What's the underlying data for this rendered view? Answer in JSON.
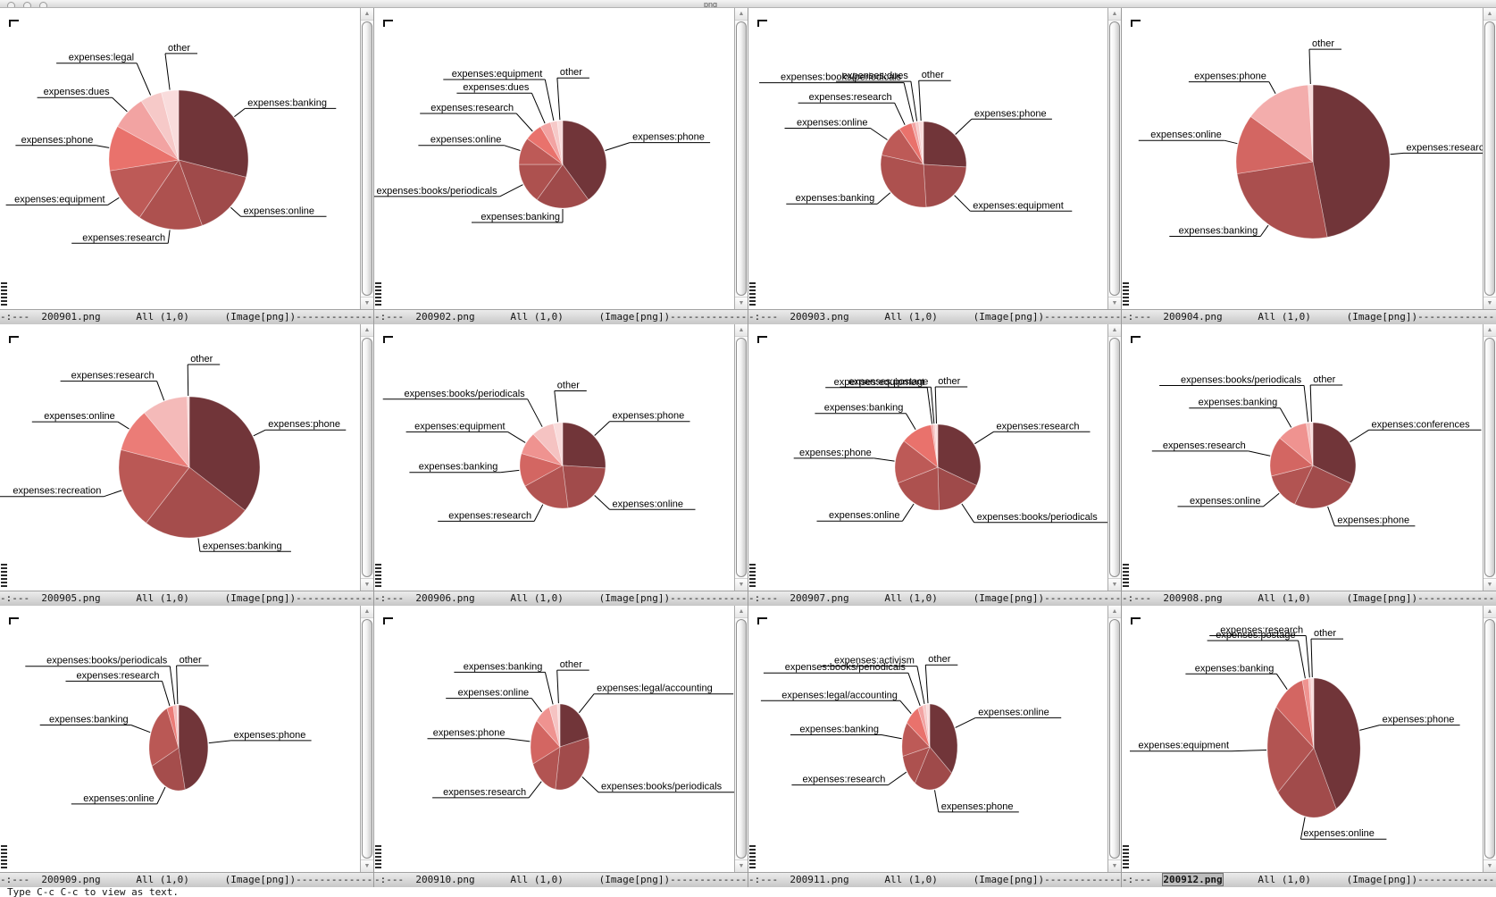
{
  "titlebar": {
    "title_fragment": "png",
    "buttons": [
      "close",
      "minimize",
      "zoom"
    ]
  },
  "modeline": {
    "prefix": "-:---  ",
    "position": "All (1,0)",
    "mode": "(Image[png])",
    "dashes": "--------------------------------------------------------"
  },
  "echo_area": "Type C-c C-c to view as text.",
  "colors": {
    "pie_ramp": [
      "#713539",
      "#9f4a4a",
      "#ad514f",
      "#bd5a57",
      "#e9726c",
      "#f2a3a2",
      "#f6c9c8",
      "#f9dcdc"
    ],
    "modeline_bg": "#d2d2d2",
    "window_bg": "#ffffff",
    "leader_line": "#000000"
  },
  "chart_data": [
    {
      "type": "pie",
      "file": "200901.png",
      "legend_position": "callout-labels",
      "grid": false,
      "center": [
        200,
        170
      ],
      "radius": [
        78,
        78
      ],
      "slices": [
        {
          "label": "expenses:banking",
          "value": 0.29,
          "side": "right"
        },
        {
          "label": "expenses:online",
          "value": 0.155,
          "side": "right"
        },
        {
          "label": "expenses:research",
          "value": 0.15,
          "side": "left"
        },
        {
          "label": "expenses:equipment",
          "value": 0.13,
          "side": "left"
        },
        {
          "label": "expenses:phone",
          "value": 0.105,
          "side": "left"
        },
        {
          "label": "expenses:dues",
          "value": 0.08,
          "side": "left",
          "ext": 24
        },
        {
          "label": "expenses:legal",
          "value": 0.05,
          "side": "left",
          "ext": 40
        },
        {
          "label": "other",
          "value": 0.04,
          "side": "right",
          "ext": 42
        }
      ]
    },
    {
      "type": "pie",
      "file": "200902.png",
      "legend_position": "callout-labels",
      "grid": false,
      "center": [
        211,
        175
      ],
      "radius": [
        49,
        49
      ],
      "slices": [
        {
          "label": "expenses:phone",
          "value": 0.4,
          "side": "right",
          "ext": 30
        },
        {
          "label": "expenses:banking",
          "value": 0.2,
          "side": "left"
        },
        {
          "label": "expenses:books/periodicals",
          "value": 0.15,
          "side": "left",
          "ext": 30
        },
        {
          "label": "expenses:online",
          "value": 0.1,
          "side": "left",
          "ext": 20
        },
        {
          "label": "expenses:research",
          "value": 0.065,
          "side": "left",
          "ext": 28
        },
        {
          "label": "expenses:dues",
          "value": 0.04,
          "side": "left",
          "ext": 38
        },
        {
          "label": "expenses:equipment",
          "value": 0.025,
          "side": "left",
          "ext": 48
        },
        {
          "label": "other",
          "value": 0.02,
          "side": "right",
          "ext": 48
        }
      ]
    },
    {
      "type": "pie",
      "file": "200903.png",
      "legend_position": "callout-labels",
      "grid": false,
      "center": [
        196,
        175
      ],
      "radius": [
        48,
        48
      ],
      "slices": [
        {
          "label": "expenses:phone",
          "value": 0.26,
          "side": "right",
          "ext": 26
        },
        {
          "label": "expenses:equipment",
          "value": 0.23,
          "side": "right",
          "ext": 26
        },
        {
          "label": "expenses:banking",
          "value": 0.295,
          "side": "left",
          "ext": 20
        },
        {
          "label": "expenses:online",
          "value": 0.12,
          "side": "left",
          "ext": 24
        },
        {
          "label": "expenses:research",
          "value": 0.05,
          "side": "left",
          "ext": 28
        },
        {
          "label": "expenses:books/periodicals",
          "value": 0.015,
          "side": "left",
          "ext": 46
        },
        {
          "label": "expenses:dues",
          "value": 0.012,
          "side": "left",
          "ext": 46
        },
        {
          "label": "other",
          "value": 0.018,
          "side": "right",
          "ext": 46
        }
      ]
    },
    {
      "type": "pie",
      "file": "200904.png",
      "legend_position": "callout-labels",
      "grid": false,
      "center": [
        214,
        172
      ],
      "radius": [
        86,
        86
      ],
      "slices": [
        {
          "label": "expenses:research",
          "value": 0.47,
          "side": "right"
        },
        {
          "label": "expenses:banking",
          "value": 0.255,
          "side": "left"
        },
        {
          "label": "expenses:online",
          "value": 0.125,
          "side": "left"
        },
        {
          "label": "expenses:phone",
          "value": 0.14,
          "side": "left"
        },
        {
          "label": "other",
          "value": 0.01,
          "side": "right",
          "ext": 40
        }
      ]
    },
    {
      "type": "pie",
      "file": "200905.png",
      "legend_position": "callout-labels",
      "grid": false,
      "center": [
        212,
        160
      ],
      "radius": [
        79,
        79
      ],
      "slices": [
        {
          "label": "expenses:phone",
          "value": 0.355,
          "side": "right"
        },
        {
          "label": "expenses:banking",
          "value": 0.25,
          "side": "right"
        },
        {
          "label": "expenses:recreation",
          "value": 0.185,
          "side": "left",
          "ext": 22
        },
        {
          "label": "expenses:online",
          "value": 0.1,
          "side": "left"
        },
        {
          "label": "expenses:research",
          "value": 0.105,
          "side": "left",
          "ext": 24
        },
        {
          "label": "other",
          "value": 0.005,
          "side": "right",
          "ext": 36
        }
      ]
    },
    {
      "type": "pie",
      "file": "200906.png",
      "legend_position": "callout-labels",
      "grid": false,
      "center": [
        211,
        158
      ],
      "radius": [
        48,
        48
      ],
      "slices": [
        {
          "label": "expenses:phone",
          "value": 0.26,
          "side": "right",
          "ext": 24
        },
        {
          "label": "expenses:online",
          "value": 0.22,
          "side": "right",
          "ext": 24
        },
        {
          "label": "expenses:research",
          "value": 0.19,
          "side": "left",
          "ext": 22
        },
        {
          "label": "expenses:banking",
          "value": 0.125,
          "side": "left",
          "ext": 22
        },
        {
          "label": "expenses:equipment",
          "value": 0.085,
          "side": "left",
          "ext": 24
        },
        {
          "label": "expenses:books/periodicals",
          "value": 0.085,
          "side": "left",
          "ext": 36
        },
        {
          "label": "other",
          "value": 0.035,
          "side": "right",
          "ext": 36
        }
      ]
    },
    {
      "type": "pie",
      "file": "200907.png",
      "legend_position": "callout-labels",
      "grid": false,
      "center": [
        212,
        160
      ],
      "radius": [
        48,
        48
      ],
      "slices": [
        {
          "label": "expenses:research",
          "value": 0.32,
          "side": "right",
          "ext": 26
        },
        {
          "label": "expenses:books/periodicals",
          "value": 0.175,
          "side": "right",
          "ext": 26
        },
        {
          "label": "expenses:online",
          "value": 0.195,
          "side": "left",
          "ext": 24
        },
        {
          "label": "expenses:phone",
          "value": 0.165,
          "side": "left",
          "ext": 24
        },
        {
          "label": "expenses:banking",
          "value": 0.12,
          "side": "left",
          "ext": 22
        },
        {
          "label": "expenses:equipment",
          "value": 0.008,
          "side": "left",
          "ext": 42
        },
        {
          "label": "expenses:postage",
          "value": 0.007,
          "side": "left",
          "ext": 42
        },
        {
          "label": "other",
          "value": 0.01,
          "side": "right",
          "ext": 42
        }
      ]
    },
    {
      "type": "pie",
      "file": "200908.png",
      "legend_position": "callout-labels",
      "grid": false,
      "center": [
        214,
        158
      ],
      "radius": [
        48,
        48
      ],
      "slices": [
        {
          "label": "expenses:conferences",
          "value": 0.32,
          "side": "right",
          "ext": 26
        },
        {
          "label": "expenses:phone",
          "value": 0.25,
          "side": "right",
          "ext": 24
        },
        {
          "label": "expenses:online",
          "value": 0.14,
          "side": "left",
          "ext": 24
        },
        {
          "label": "expenses:research",
          "value": 0.15,
          "side": "left",
          "ext": 26
        },
        {
          "label": "expenses:banking",
          "value": 0.115,
          "side": "left",
          "ext": 26
        },
        {
          "label": "expenses:books/periodicals",
          "value": 0.015,
          "side": "left",
          "ext": 42
        },
        {
          "label": "other",
          "value": 0.01,
          "side": "right",
          "ext": 42
        }
      ]
    },
    {
      "type": "pie",
      "file": "200909.png",
      "legend_position": "callout-labels",
      "grid": false,
      "center": [
        200,
        159
      ],
      "radius": [
        33,
        48
      ],
      "slices": [
        {
          "label": "expenses:phone",
          "value": 0.465,
          "side": "right",
          "ext": 26
        },
        {
          "label": "expenses:online",
          "value": 0.215,
          "side": "left",
          "ext": 22
        },
        {
          "label": "expenses:banking",
          "value": 0.255,
          "side": "left",
          "ext": 24
        },
        {
          "label": "expenses:research",
          "value": 0.035,
          "side": "left",
          "ext": 30
        },
        {
          "label": "expenses:books/periodicals",
          "value": 0.02,
          "side": "left",
          "ext": 44
        },
        {
          "label": "other",
          "value": 0.01,
          "side": "right",
          "ext": 44
        }
      ]
    },
    {
      "type": "pie",
      "file": "200910.png",
      "legend_position": "callout-labels",
      "grid": false,
      "center": [
        208,
        158
      ],
      "radius": [
        33,
        48
      ],
      "slices": [
        {
          "label": "expenses:legal/accounting",
          "value": 0.215,
          "side": "right",
          "ext": 28
        },
        {
          "label": "expenses:books/periodicals",
          "value": 0.31,
          "side": "right",
          "ext": 26
        },
        {
          "label": "expenses:research",
          "value": 0.16,
          "side": "left",
          "ext": 24
        },
        {
          "label": "expenses:phone",
          "value": 0.17,
          "side": "left",
          "ext": 26
        },
        {
          "label": "expenses:online",
          "value": 0.085,
          "side": "left",
          "ext": 20
        },
        {
          "label": "expenses:banking",
          "value": 0.045,
          "side": "left",
          "ext": 38
        },
        {
          "label": "other",
          "value": 0.015,
          "side": "right",
          "ext": 38
        }
      ]
    },
    {
      "type": "pie",
      "file": "200911.png",
      "legend_position": "callout-labels",
      "grid": false,
      "center": [
        203,
        158
      ],
      "radius": [
        31,
        48
      ],
      "slices": [
        {
          "label": "expenses:online",
          "value": 0.355,
          "side": "right",
          "ext": 26
        },
        {
          "label": "expenses:phone",
          "value": 0.235,
          "side": "right",
          "ext": 26
        },
        {
          "label": "expenses:research",
          "value": 0.125,
          "side": "left",
          "ext": 26
        },
        {
          "label": "expenses:banking",
          "value": 0.13,
          "side": "left",
          "ext": 24
        },
        {
          "label": "expenses:legal/accounting",
          "value": 0.085,
          "side": "left",
          "ext": 20
        },
        {
          "label": "expenses:books/periodicals",
          "value": 0.03,
          "side": "left",
          "ext": 40
        },
        {
          "label": "expenses:activism",
          "value": 0.02,
          "side": "left",
          "ext": 44
        },
        {
          "label": "other",
          "value": 0.02,
          "side": "right",
          "ext": 44
        }
      ]
    },
    {
      "type": "pie",
      "file": "200912.png",
      "active": true,
      "legend_position": "callout-labels",
      "grid": false,
      "center": [
        215,
        159
      ],
      "radius": [
        52,
        78
      ],
      "slices": [
        {
          "label": "expenses:phone",
          "value": 0.42,
          "side": "right",
          "ext": 24
        },
        {
          "label": "expenses:online",
          "value": 0.22,
          "side": "right",
          "ext": 26
        },
        {
          "label": "expenses:equipment",
          "value": 0.21,
          "side": "left",
          "ext": 40
        },
        {
          "label": "expenses:banking",
          "value": 0.11,
          "side": "left",
          "ext": 22
        },
        {
          "label": "expenses:postage",
          "value": 0.022,
          "side": "left",
          "ext": 44
        },
        {
          "label": "expenses:research",
          "value": 0.008,
          "side": "left",
          "ext": 48
        },
        {
          "label": "other",
          "value": 0.01,
          "side": "right",
          "ext": 44
        }
      ]
    }
  ]
}
